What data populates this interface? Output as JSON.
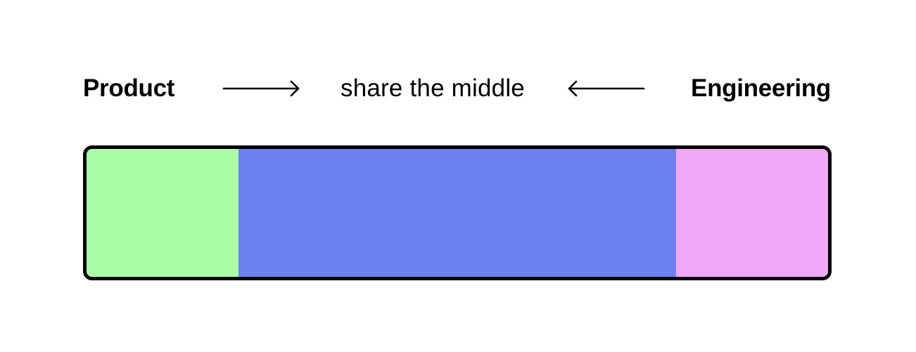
{
  "labels": {
    "left": "Product",
    "middle": "share the middle",
    "right": "Engineering"
  },
  "arrows": {
    "left_to_middle": "arrow-right-icon",
    "right_to_middle": "arrow-left-icon"
  },
  "bar": {
    "segments": [
      {
        "owner": "Product",
        "share": 0.205,
        "color": "#aafca6"
      },
      {
        "owner": "shared",
        "share": 0.59,
        "color": "#6b81ef"
      },
      {
        "owner": "Engineering",
        "share": 0.205,
        "color": "#f0a9f9"
      }
    ],
    "border_color": "#000000"
  }
}
